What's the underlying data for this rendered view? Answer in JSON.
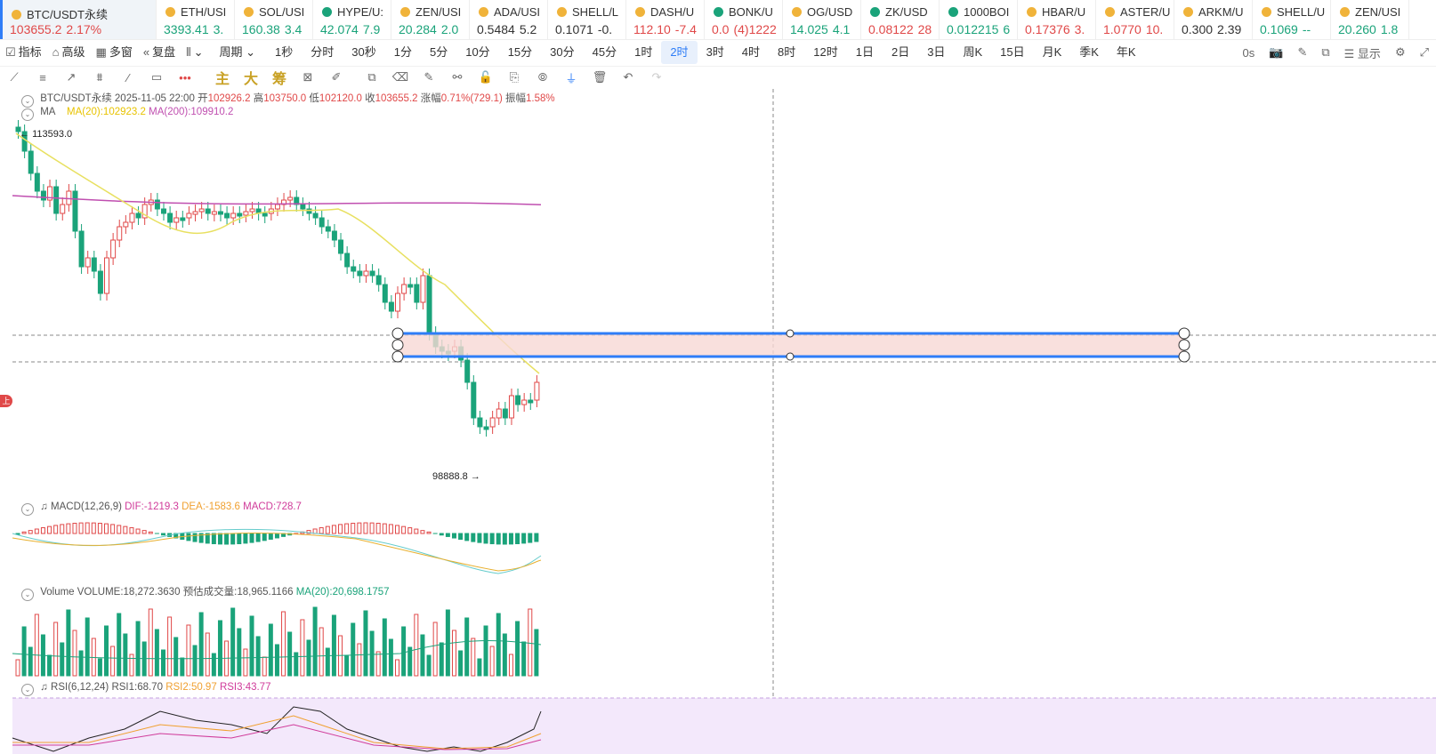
{
  "tickers": [
    {
      "symbol": "BTC/USDT永续",
      "price": "103655.2",
      "change": "2.17%",
      "dir": "up",
      "active": true,
      "icon_color": "#f0b33a"
    },
    {
      "symbol": "ETH/USI",
      "price": "3393.41",
      "change": "3.",
      "dir": "dn",
      "icon_color": "#f0b33a"
    },
    {
      "symbol": "SOL/USI",
      "price": "160.38",
      "change": "3.4",
      "dir": "dn",
      "icon_color": "#f0b33a"
    },
    {
      "symbol": "HYPE/U:",
      "price": "42.074",
      "change": "7.9",
      "dir": "dn",
      "icon_color": "#1aa37a"
    },
    {
      "symbol": "ZEN/USI",
      "price": "20.284",
      "change": "2.0",
      "dir": "dn",
      "icon_color": "#f0b33a"
    },
    {
      "symbol": "ADA/USI",
      "price": "0.5484",
      "change": "5.2",
      "dir": "flat",
      "icon_color": "#f0b33a"
    },
    {
      "symbol": "SHELL/L",
      "price": "0.1071",
      "change": "-0.",
      "dir": "flat",
      "icon_color": "#f0b33a"
    },
    {
      "symbol": "DASH/U",
      "price": "112.10",
      "change": "-7.4",
      "dir": "up",
      "icon_color": "#f0b33a"
    },
    {
      "symbol": "BONK/U",
      "price": "0.0",
      "change": "(4)1222",
      "dir": "up",
      "icon_color": "#1aa37a"
    },
    {
      "symbol": "OG/USD",
      "price": "14.025",
      "change": "4.1",
      "dir": "dn",
      "icon_color": "#f0b33a"
    },
    {
      "symbol": "ZK/USD",
      "price": "0.08122",
      "change": "28",
      "dir": "up",
      "icon_color": "#1aa37a"
    },
    {
      "symbol": "1000BOI",
      "price": "0.012215",
      "change": "6",
      "dir": "dn",
      "icon_color": "#1aa37a"
    },
    {
      "symbol": "HBAR/U",
      "price": "0.17376",
      "change": "3.",
      "dir": "up",
      "icon_color": "#f0b33a"
    },
    {
      "symbol": "ASTER/U",
      "price": "1.0770",
      "change": "10.",
      "dir": "up",
      "icon_color": "#f0b33a"
    },
    {
      "symbol": "ARKM/U",
      "price": "0.300",
      "change": "2.39",
      "dir": "flat",
      "icon_color": "#f0b33a"
    },
    {
      "symbol": "SHELL/U",
      "price": "0.1069",
      "change": "--",
      "dir": "dn",
      "icon_color": "#f0b33a"
    },
    {
      "symbol": "ZEN/USI",
      "price": "20.260",
      "change": "1.8",
      "dir": "dn",
      "icon_color": "#f0b33a"
    }
  ],
  "toolbar": {
    "indicators": "指标",
    "advanced": "高级",
    "multi_window": "多窗",
    "replay": "复盘",
    "period_label": "周期",
    "periods": [
      "1秒",
      "分时",
      "30秒",
      "1分",
      "5分",
      "10分",
      "15分",
      "30分",
      "45分",
      "1时",
      "2时",
      "3时",
      "4时",
      "8时",
      "12时",
      "1日",
      "2日",
      "3日",
      "周K",
      "15日",
      "月K",
      "季K",
      "年K"
    ],
    "active_period": "2时",
    "countdown": "0s",
    "display": "显示"
  },
  "draw_tools": {
    "main": "主",
    "big": "大",
    "chip": "筹"
  },
  "legend": {
    "symbol": "BTC/USDT永续",
    "datetime": "2025-11-05 22:00",
    "open_label": "开",
    "open": "102926.2",
    "high_label": "高",
    "high": "103750.0",
    "low_label": "低",
    "low": "102120.0",
    "close_label": "收",
    "close": "103655.2",
    "change_label": "涨幅",
    "change": "0.71%(729.1)",
    "amp_label": "振幅",
    "amp": "1.58%",
    "ma_label": "MA",
    "ma20": "MA(20):102923.2",
    "ma200": "MA(200):109910.2"
  },
  "price_marks": {
    "high": "113593.0",
    "low": "98888.8"
  },
  "macd_legend": {
    "label": "MACD(12,26,9)",
    "dif": "DIF:-1219.3",
    "dea": "DEA:-1583.6",
    "macd": "MACD:728.7"
  },
  "volume_legend": {
    "label": "Volume",
    "volume": "VOLUME:18,272.3630",
    "est": "预估成交量:18,965.1166",
    "ma": "MA(20):20,698.1757"
  },
  "rsi_legend": {
    "label": "RSI(6,12,24)",
    "rsi1": "RSI1:68.70",
    "rsi2": "RSI2:50.97",
    "rsi3": "RSI3:43.77"
  },
  "side_marker": "上",
  "colors": {
    "up": "#e04848",
    "down": "#1aa37a",
    "ma20": "#e8e060",
    "ma200": "#c04fb0",
    "box_fill": "#f8d8d4",
    "box_edge": "#2e7df7"
  }
}
